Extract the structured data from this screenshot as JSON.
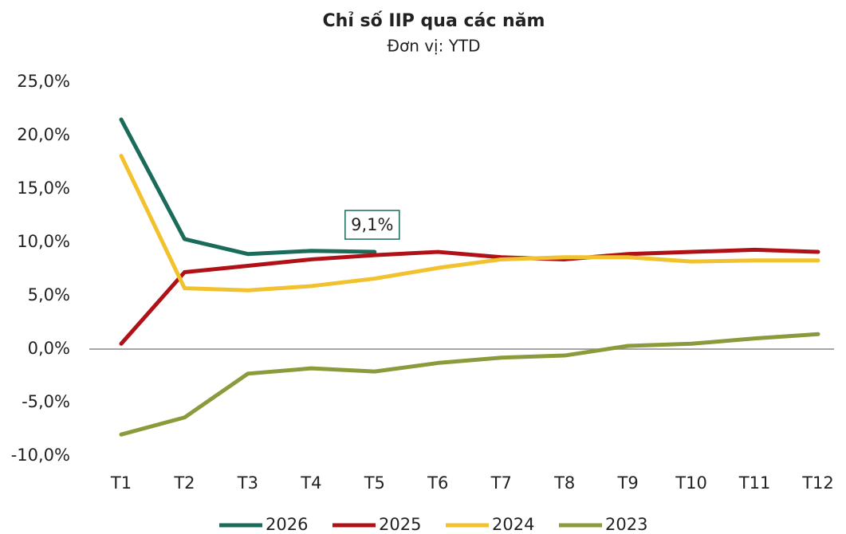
{
  "chart_data": {
    "type": "line",
    "title": "Chỉ số IIP qua các năm",
    "subtitle": "Đơn vị: YTD",
    "categories": [
      "T1",
      "T2",
      "T3",
      "T4",
      "T5",
      "T6",
      "T7",
      "T8",
      "T9",
      "T10",
      "T11",
      "T12"
    ],
    "series": [
      {
        "name": "2026",
        "color": "#1b6b5a",
        "values": [
          21.5,
          10.3,
          8.9,
          9.2,
          9.1,
          null,
          null,
          null,
          null,
          null,
          null,
          null
        ],
        "value_labels": [
          null,
          null,
          null,
          null,
          "9,1%",
          null,
          null,
          null,
          null,
          null,
          null,
          null
        ]
      },
      {
        "name": "2025",
        "color": "#b01116",
        "values": [
          0.5,
          7.2,
          7.8,
          8.4,
          8.8,
          9.1,
          8.6,
          8.4,
          8.9,
          9.1,
          9.3,
          9.1
        ]
      },
      {
        "name": "2024",
        "color": "#f2c12e",
        "values": [
          18.1,
          5.7,
          5.5,
          5.9,
          6.6,
          7.6,
          8.4,
          8.6,
          8.6,
          8.2,
          8.3,
          8.3
        ]
      },
      {
        "name": "2023",
        "color": "#8a9b3c",
        "values": [
          -8.0,
          -6.4,
          -2.3,
          -1.8,
          -2.1,
          -1.3,
          -0.8,
          -0.6,
          0.3,
          0.5,
          1.0,
          1.4
        ]
      }
    ],
    "ylim": [
      -10,
      25
    ],
    "yticks": [
      {
        "value": -10,
        "label": "-10,0%"
      },
      {
        "value": -5,
        "label": "-5,0%"
      },
      {
        "value": 0,
        "label": "0,0%"
      },
      {
        "value": 5,
        "label": "5,0%"
      },
      {
        "value": 10,
        "label": "10,0%"
      },
      {
        "value": 15,
        "label": "15,0%"
      },
      {
        "value": 20,
        "label": "20,0%"
      },
      {
        "value": 25,
        "label": "25,0%"
      }
    ],
    "grid": false,
    "legend": "bottom"
  }
}
